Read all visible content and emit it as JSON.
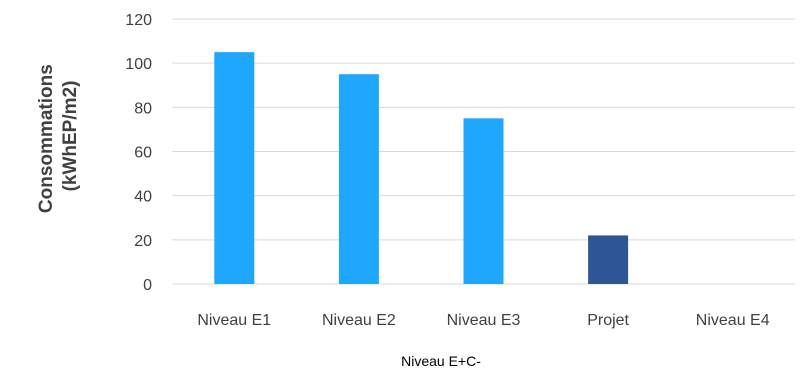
{
  "chart_data": {
    "type": "bar",
    "categories": [
      "Niveau E1",
      "Niveau E2",
      "Niveau E3",
      "Projet",
      "Niveau E4"
    ],
    "values": [
      105,
      95,
      75,
      22,
      0
    ],
    "bar_colors": [
      "#1ea7fd",
      "#1ea7fd",
      "#1ea7fd",
      "#2e5596",
      "#1ea7fd"
    ],
    "ylabel_lines": [
      "Consommations",
      "(kWhEP/m2)"
    ],
    "xlabel": "Niveau E+C-",
    "ylim": [
      0,
      120
    ],
    "yticks": [
      0,
      20,
      40,
      60,
      80,
      100,
      120
    ],
    "grid": true,
    "grid_color": "#d9d9d9"
  }
}
